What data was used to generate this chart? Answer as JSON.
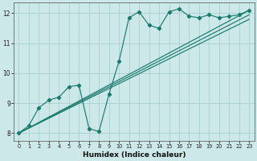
{
  "xlabel": "Humidex (Indice chaleur)",
  "bg_color": "#cce8e8",
  "grid_color": "#aacfcf",
  "line_color": "#1a7a6e",
  "xlim": [
    -0.5,
    23.5
  ],
  "ylim": [
    7.75,
    12.35
  ],
  "xticks": [
    0,
    1,
    2,
    3,
    4,
    5,
    6,
    7,
    8,
    9,
    10,
    11,
    12,
    13,
    14,
    15,
    16,
    17,
    18,
    19,
    20,
    21,
    22,
    23
  ],
  "yticks": [
    8,
    9,
    10,
    11,
    12
  ],
  "line1_x": [
    0,
    1,
    2,
    3,
    4,
    5,
    6,
    7,
    8,
    9,
    10,
    11,
    12,
    13,
    14,
    15,
    16,
    17,
    18,
    19,
    20,
    21,
    22,
    23
  ],
  "line1_y": [
    8.0,
    8.25,
    8.85,
    9.1,
    9.2,
    9.55,
    9.6,
    8.15,
    8.05,
    9.3,
    10.4,
    11.85,
    12.05,
    11.6,
    11.5,
    12.05,
    12.15,
    11.9,
    11.85,
    11.95,
    11.85,
    11.9,
    11.95,
    12.1
  ],
  "straight_lines": [
    {
      "x0": 0,
      "y0": 8.0,
      "x1": 23,
      "y1": 12.1
    },
    {
      "x0": 0,
      "y0": 8.0,
      "x1": 23,
      "y1": 11.95
    },
    {
      "x0": 0,
      "y0": 8.0,
      "x1": 23,
      "y1": 11.8
    }
  ]
}
